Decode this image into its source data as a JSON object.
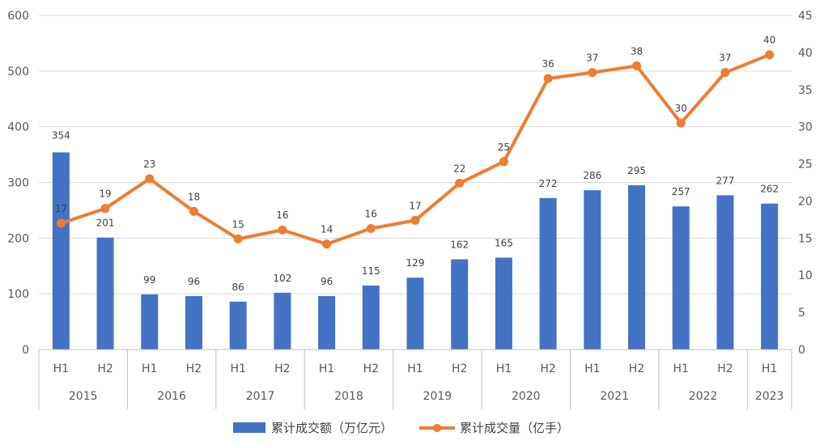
{
  "chart_data": {
    "type": "bar",
    "combo": "bar+line",
    "categories": [
      "H1",
      "H2",
      "H1",
      "H2",
      "H1",
      "H2",
      "H1",
      "H2",
      "H1",
      "H2",
      "H1",
      "H2",
      "H1",
      "H2",
      "H1",
      "H2",
      "H1"
    ],
    "years": [
      {
        "label": "2015",
        "span": 2
      },
      {
        "label": "2016",
        "span": 2
      },
      {
        "label": "2017",
        "span": 2
      },
      {
        "label": "2018",
        "span": 2
      },
      {
        "label": "2019",
        "span": 2
      },
      {
        "label": "2020",
        "span": 2
      },
      {
        "label": "2021",
        "span": 2
      },
      {
        "label": "2022",
        "span": 2
      },
      {
        "label": "2023",
        "span": 1
      }
    ],
    "series": [
      {
        "name": "累计成交额（万亿元）",
        "type": "bar",
        "axis": "left",
        "color": "#4472C4",
        "values": [
          354,
          201,
          99,
          96,
          86,
          102,
          96,
          115,
          129,
          162,
          165,
          272,
          286,
          295,
          257,
          277,
          262
        ]
      },
      {
        "name": "累计成交量（亿手）",
        "type": "line",
        "axis": "right",
        "color": "#ED7D31",
        "values": [
          17,
          19,
          23,
          18,
          15,
          16,
          14,
          16,
          17,
          22,
          25,
          36,
          37,
          38,
          30,
          37,
          40
        ],
        "plot_values": [
          17,
          19,
          23,
          18.6,
          14.9,
          16.1,
          14.2,
          16.3,
          17.4,
          22.4,
          25.3,
          36.5,
          37.3,
          38.2,
          30.5,
          37.3,
          39.7
        ]
      }
    ],
    "y_left": {
      "min": 0,
      "max": 600,
      "step": 100
    },
    "y_right": {
      "min": 0,
      "max": 45,
      "step": 5
    },
    "grid": true,
    "legend_position": "bottom",
    "title": "",
    "xlabel": "",
    "ylabel": ""
  }
}
